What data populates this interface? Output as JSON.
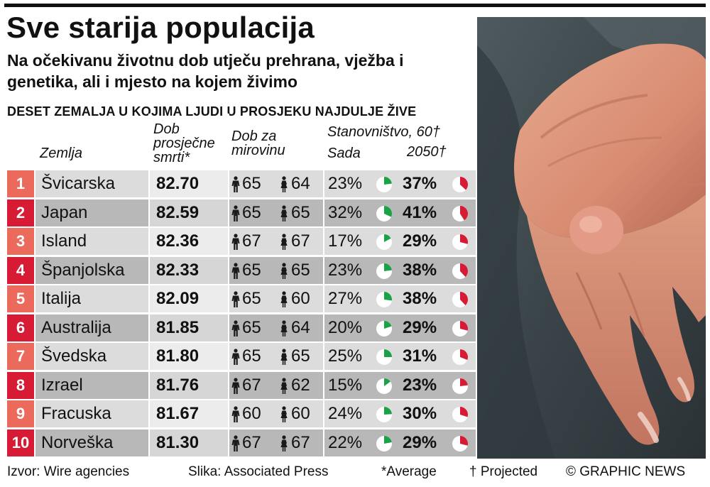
{
  "title": "Sve starija populacija",
  "subtitle": "Na očekivanu životnu dob utječu prehrana, vježba i genetika, ali i mjesto na kojem živimo",
  "section_title": "DESET ZEMALJA U KOJIMA LJUDI U PROSJEKU NAJDULJE ŽIVE",
  "headers": {
    "country": "Zemlja",
    "life_line1": "Dob",
    "life_line2": "prosječne",
    "life_line3": "smrti*",
    "retire_line1": "Dob za",
    "retire_line2": "mirovinu",
    "pop_line1": "Stanovništvo, 60†",
    "pop_now": "Sada",
    "pop_future": "2050†"
  },
  "colors": {
    "rank_odd": "#ec6a5c",
    "rank_even": "#d81b34",
    "pie_now": "#19a346",
    "pie_future": "#d81b34",
    "icon": "#1a1a1a"
  },
  "icons": {
    "male": "male-figure-icon",
    "female": "female-figure-icon",
    "pie": "pie-chart-icon"
  },
  "chart_data": {
    "type": "table",
    "title": "DESET ZEMALJA U KOJIMA LJUDI U PROSJEKU NAJDULJE ŽIVE",
    "columns": [
      "Zemlja",
      "Dob prosječne smrti*",
      "Dob za mirovinu (M)",
      "Dob za mirovinu (Ž)",
      "Stanovništvo, 60† Sada",
      "Stanovništvo, 60† 2050†"
    ],
    "rows": [
      {
        "rank": "1",
        "country": "Švicarska",
        "life": "82.70",
        "male": "65",
        "female": "64",
        "now": "23%",
        "future": "37%",
        "now_pct": 23,
        "future_pct": 37
      },
      {
        "rank": "2",
        "country": "Japan",
        "life": "82.59",
        "male": "65",
        "female": "65",
        "now": "32%",
        "future": "41%",
        "now_pct": 32,
        "future_pct": 41
      },
      {
        "rank": "3",
        "country": "Island",
        "life": "82.36",
        "male": "67",
        "female": "67",
        "now": "17%",
        "future": "29%",
        "now_pct": 17,
        "future_pct": 29
      },
      {
        "rank": "4",
        "country": "Španjolska",
        "life": "82.33",
        "male": "65",
        "female": "65",
        "now": "23%",
        "future": "38%",
        "now_pct": 23,
        "future_pct": 38
      },
      {
        "rank": "5",
        "country": "Italija",
        "life": "82.09",
        "male": "65",
        "female": "60",
        "now": "27%",
        "future": "38%",
        "now_pct": 27,
        "future_pct": 38
      },
      {
        "rank": "6",
        "country": "Australija",
        "life": "81.85",
        "male": "65",
        "female": "64",
        "now": "20%",
        "future": "29%",
        "now_pct": 20,
        "future_pct": 29
      },
      {
        "rank": "7",
        "country": "Švedska",
        "life": "81.80",
        "male": "65",
        "female": "65",
        "now": "25%",
        "future": "31%",
        "now_pct": 25,
        "future_pct": 31
      },
      {
        "rank": "8",
        "country": "Izrael",
        "life": "81.76",
        "male": "67",
        "female": "62",
        "now": "15%",
        "future": "23%",
        "now_pct": 15,
        "future_pct": 23
      },
      {
        "rank": "9",
        "country": "Fracuska",
        "life": "81.67",
        "male": "60",
        "female": "60",
        "now": "24%",
        "future": "30%",
        "now_pct": 24,
        "future_pct": 30
      },
      {
        "rank": "10",
        "country": "Norveška",
        "life": "81.30",
        "male": "67",
        "female": "67",
        "now": "22%",
        "future": "29%",
        "now_pct": 22,
        "future_pct": 29
      }
    ]
  },
  "footer": {
    "source": "Izvor: Wire agencies",
    "photo": "Slika: Associated Press",
    "average": "*Average",
    "projected": "† Projected",
    "brand": "© GRAPHIC NEWS"
  }
}
